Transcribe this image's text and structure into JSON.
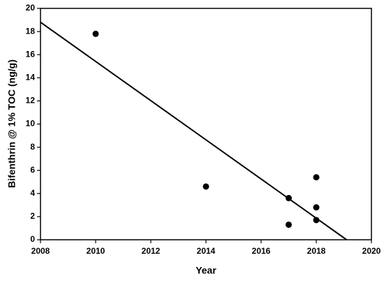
{
  "chart_data": {
    "type": "scatter",
    "xlabel": "Year",
    "ylabel": "Bifenthrin @ 1% TOC (ng/g)",
    "series": [
      {
        "color": "#000000",
        "x": [
          2010,
          2014,
          2017,
          2017,
          2018,
          2018,
          2018
        ],
        "values": [
          17.8,
          4.6,
          3.6,
          1.3,
          5.4,
          2.8,
          1.7
        ]
      }
    ],
    "trend": {
      "color": "#000000",
      "x": [
        2008,
        2019.1
      ],
      "values": [
        18.8,
        0
      ]
    },
    "xlim": [
      2008,
      2020
    ],
    "xticks": [
      2008,
      2010,
      2012,
      2014,
      2016,
      2018,
      2020
    ],
    "ylim": [
      0,
      20
    ],
    "yticks": [
      0,
      2,
      4,
      6,
      8,
      10,
      12,
      14,
      16,
      18,
      20
    ],
    "grid": false
  }
}
